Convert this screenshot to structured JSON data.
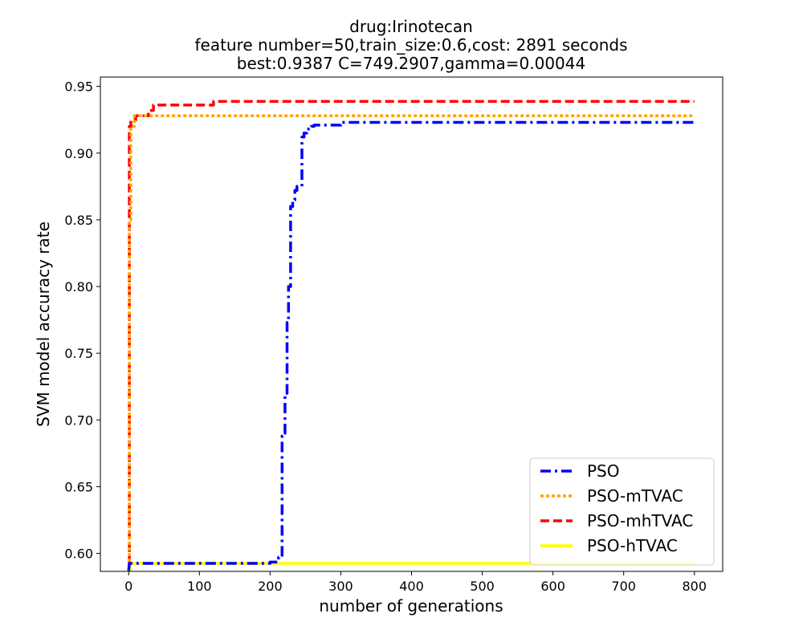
{
  "chart_data": {
    "type": "line",
    "title_lines": [
      "drug:Irinotecan",
      "feature number=50,train_size:0.6,cost: 2891 seconds",
      "best:0.9387  C=749.2907,gamma=0.00044"
    ],
    "xlabel": "number of generations",
    "ylabel": "SVM model accuracy rate",
    "xlim": [
      -40,
      840
    ],
    "ylim": [
      0.5865,
      0.957
    ],
    "xticks": [
      0,
      100,
      200,
      300,
      400,
      500,
      600,
      700,
      800
    ],
    "yticks": [
      0.6,
      0.65,
      0.7,
      0.75,
      0.8,
      0.85,
      0.9,
      0.95
    ],
    "ytick_labels": [
      "0.60",
      "0.65",
      "0.70",
      "0.75",
      "0.80",
      "0.85",
      "0.90",
      "0.95"
    ],
    "grid": false,
    "legend_position": "lower-right",
    "series": [
      {
        "name": "PSO",
        "color": "#0000ff",
        "dash": "dashdot",
        "x": [
          0,
          1,
          2,
          200,
          200,
          212,
          212,
          217,
          217,
          219,
          219,
          221,
          221,
          224,
          224,
          226,
          226,
          229,
          229,
          232,
          232,
          235,
          235,
          238,
          238,
          245,
          245,
          248,
          248,
          252,
          252,
          258,
          258,
          262,
          262,
          300,
          300,
          305,
          305,
          800
        ],
        "y": [
          0.587,
          0.5925,
          0.5925,
          0.5925,
          0.5935,
          0.5935,
          0.597,
          0.597,
          0.688,
          0.688,
          0.69,
          0.69,
          0.72,
          0.72,
          0.773,
          0.773,
          0.8,
          0.8,
          0.86,
          0.86,
          0.865,
          0.865,
          0.872,
          0.872,
          0.875,
          0.875,
          0.912,
          0.912,
          0.915,
          0.915,
          0.918,
          0.918,
          0.92,
          0.92,
          0.921,
          0.921,
          0.923,
          0.923,
          0.923,
          0.923
        ]
      },
      {
        "name": "PSO-mTVAC",
        "color": "#ffa500",
        "dash": "dotted",
        "x": [
          0,
          1,
          1,
          3,
          3,
          8,
          8,
          800
        ],
        "y": [
          0.59,
          0.59,
          0.85,
          0.85,
          0.92,
          0.92,
          0.928,
          0.928
        ]
      },
      {
        "name": "PSO-mhTVAC",
        "color": "#ff0000",
        "dash": "dashed",
        "x": [
          0,
          1,
          1,
          3,
          3,
          10,
          10,
          28,
          28,
          35,
          35,
          120,
          120,
          800
        ],
        "y": [
          0.592,
          0.592,
          0.92,
          0.92,
          0.925,
          0.925,
          0.928,
          0.928,
          0.932,
          0.932,
          0.936,
          0.936,
          0.9387,
          0.9387
        ]
      },
      {
        "name": "PSO-hTVAC",
        "color": "#ffff00",
        "dash": "solid",
        "x": [
          0,
          2,
          2,
          800
        ],
        "y": [
          0.587,
          0.587,
          0.5925,
          0.5925
        ]
      }
    ]
  }
}
